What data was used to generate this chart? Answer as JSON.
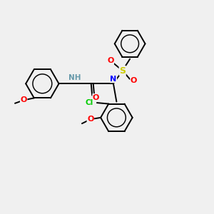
{
  "background_color": "#f0f0f0",
  "bond_color": "#000000",
  "atom_colors": {
    "O": "#ff0000",
    "N": "#0000ff",
    "S": "#cccc00",
    "Cl": "#00cc00",
    "NH": "#6699aa",
    "C": "#000000"
  },
  "figsize": [
    3.0,
    3.0
  ],
  "dpi": 100,
  "xlim": [
    0,
    10
  ],
  "ylim": [
    0,
    10
  ]
}
